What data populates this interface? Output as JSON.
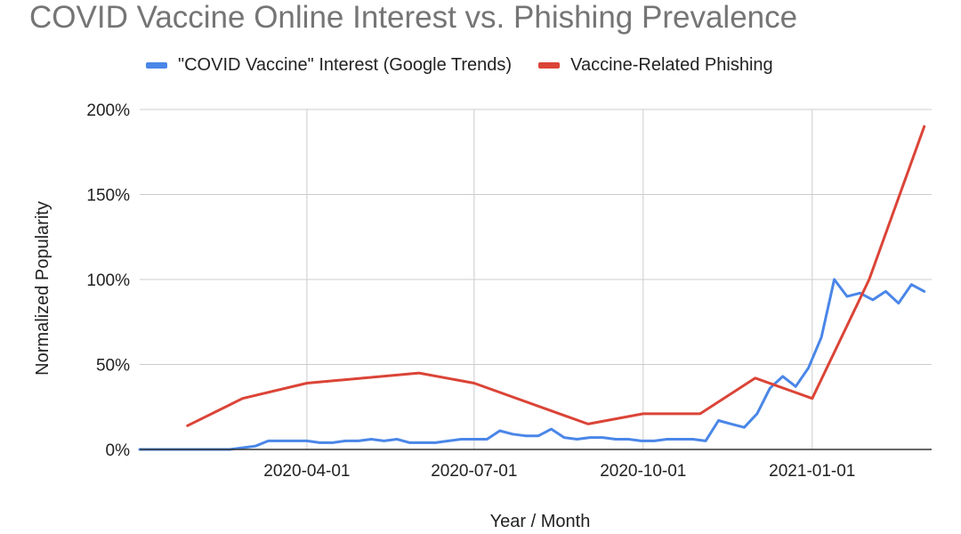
{
  "chart_data": {
    "type": "line",
    "title": "COVID Vaccine Online Interest vs. Phishing Prevalence",
    "xlabel": "Year / Month",
    "ylabel": "Normalized Popularity",
    "x_range": [
      "2020-01-01",
      "2021-03-07"
    ],
    "ylim": [
      0,
      200
    ],
    "y_ticks": [
      0,
      50,
      100,
      150,
      200
    ],
    "y_tick_labels": [
      "0%",
      "50%",
      "100%",
      "150%",
      "200%"
    ],
    "x_ticks": [
      "2020-04-01",
      "2020-07-01",
      "2020-10-01",
      "2021-01-01"
    ],
    "grid": true,
    "legend_position": "top",
    "series": [
      {
        "name": "\"COVID Vaccine\" Interest (Google Trends)",
        "color": "#4a86e8",
        "points": [
          [
            "2020-01-01",
            0
          ],
          [
            "2020-01-08",
            0
          ],
          [
            "2020-01-15",
            0
          ],
          [
            "2020-01-22",
            0
          ],
          [
            "2020-01-29",
            0
          ],
          [
            "2020-02-05",
            0
          ],
          [
            "2020-02-12",
            0
          ],
          [
            "2020-02-19",
            0
          ],
          [
            "2020-02-26",
            1
          ],
          [
            "2020-03-04",
            2
          ],
          [
            "2020-03-11",
            5
          ],
          [
            "2020-03-18",
            5
          ],
          [
            "2020-03-25",
            5
          ],
          [
            "2020-04-01",
            5
          ],
          [
            "2020-04-08",
            4
          ],
          [
            "2020-04-15",
            4
          ],
          [
            "2020-04-22",
            5
          ],
          [
            "2020-04-29",
            5
          ],
          [
            "2020-05-06",
            6
          ],
          [
            "2020-05-13",
            5
          ],
          [
            "2020-05-20",
            6
          ],
          [
            "2020-05-27",
            4
          ],
          [
            "2020-06-03",
            4
          ],
          [
            "2020-06-10",
            4
          ],
          [
            "2020-06-17",
            5
          ],
          [
            "2020-06-24",
            6
          ],
          [
            "2020-07-01",
            6
          ],
          [
            "2020-07-08",
            6
          ],
          [
            "2020-07-15",
            11
          ],
          [
            "2020-07-22",
            9
          ],
          [
            "2020-07-29",
            8
          ],
          [
            "2020-08-05",
            8
          ],
          [
            "2020-08-12",
            12
          ],
          [
            "2020-08-19",
            7
          ],
          [
            "2020-08-26",
            6
          ],
          [
            "2020-09-02",
            7
          ],
          [
            "2020-09-09",
            7
          ],
          [
            "2020-09-16",
            6
          ],
          [
            "2020-09-23",
            6
          ],
          [
            "2020-09-30",
            5
          ],
          [
            "2020-10-07",
            5
          ],
          [
            "2020-10-14",
            6
          ],
          [
            "2020-10-21",
            6
          ],
          [
            "2020-10-28",
            6
          ],
          [
            "2020-11-04",
            5
          ],
          [
            "2020-11-11",
            17
          ],
          [
            "2020-11-18",
            15
          ],
          [
            "2020-11-25",
            13
          ],
          [
            "2020-12-02",
            21
          ],
          [
            "2020-12-09",
            36
          ],
          [
            "2020-12-16",
            43
          ],
          [
            "2020-12-23",
            37
          ],
          [
            "2020-12-30",
            48
          ],
          [
            "2021-01-06",
            66
          ],
          [
            "2021-01-13",
            100
          ],
          [
            "2021-01-20",
            90
          ],
          [
            "2021-01-27",
            92
          ],
          [
            "2021-02-03",
            88
          ],
          [
            "2021-02-10",
            93
          ],
          [
            "2021-02-17",
            86
          ],
          [
            "2021-02-24",
            97
          ],
          [
            "2021-03-03",
            93
          ]
        ]
      },
      {
        "name": "Vaccine-Related Phishing",
        "color": "#db4437",
        "points": [
          [
            "2020-01-27",
            14
          ],
          [
            "2020-02-26",
            30
          ],
          [
            "2020-04-01",
            39
          ],
          [
            "2020-06-01",
            45
          ],
          [
            "2020-07-01",
            39
          ],
          [
            "2020-09-01",
            15
          ],
          [
            "2020-10-01",
            21
          ],
          [
            "2020-11-01",
            21
          ],
          [
            "2020-12-01",
            42
          ],
          [
            "2021-01-01",
            30
          ],
          [
            "2021-02-01",
            100
          ],
          [
            "2021-03-03",
            190
          ]
        ]
      }
    ]
  }
}
